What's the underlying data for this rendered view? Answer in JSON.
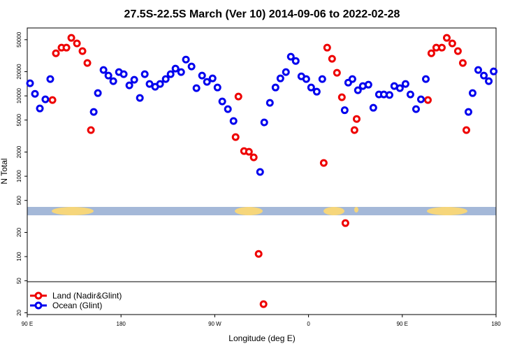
{
  "chart_data": {
    "type": "scatter",
    "title": "27.5S-22.5S March (Ver 10)   2014-09-06 to 2022-02-28",
    "x_label": "Longitude (deg E)",
    "y_label": "N Total",
    "log_y": true,
    "grid": false,
    "legend": "bottom-left",
    "xlim": [
      90,
      540
    ],
    "ylim": [
      19,
      70000
    ],
    "xticks": [
      {
        "value": 90,
        "label": "90 E"
      },
      {
        "value": 180,
        "label": "180"
      },
      {
        "value": 270,
        "label": "90 W"
      },
      {
        "value": 360,
        "label": "0"
      },
      {
        "value": 450,
        "label": "90 E"
      },
      {
        "value": 540,
        "label": "180"
      }
    ],
    "yticks": [
      20,
      50,
      100,
      200,
      500,
      1000,
      2000,
      5000,
      10000,
      20000,
      50000
    ],
    "series": [
      {
        "name": "Land (Nadir&Glint)",
        "color": "#ee0000",
        "x": [
          114.2,
          117.5,
          122.9,
          127.6,
          132.3,
          137.7,
          143,
          147.7,
          151.1,
          292.7,
          290,
          298.1,
          302.8,
          307.4,
          312.1,
          316.8,
          374.6,
          377.9,
          382.6,
          387.3,
          392,
          395.4,
          404.1,
          406.2,
          474.6,
          477.9,
          482.6,
          488,
          492.7,
          498,
          503.4,
          508.1,
          511.5
        ],
        "values": [
          8870,
          33900,
          39810,
          39810,
          52700,
          44900,
          36040,
          25650,
          3750,
          9800,
          3070,
          2055,
          2015,
          1718,
          108,
          25.6,
          1463,
          39810,
          28900,
          19360,
          9610,
          261,
          3750,
          5160,
          8870,
          33900,
          39810,
          39810,
          52700,
          44900,
          36040,
          25650,
          3750
        ]
      },
      {
        "name": "Ocean (Glint)",
        "color": "#0000ee",
        "x": [
          92.7,
          97.4,
          102.1,
          107.4,
          112.1,
          157.8,
          153.8,
          163.2,
          167.9,
          172.6,
          178,
          182.6,
          188,
          192.7,
          198.1,
          202.8,
          207.4,
          212.8,
          217.5,
          222.9,
          227.6,
          232.3,
          237.7,
          242.3,
          247.7,
          252.4,
          257.8,
          262.5,
          267.9,
          272.6,
          277.2,
          282.6,
          288,
          313.5,
          317.5,
          322.9,
          328.3,
          333,
          338.3,
          343,
          347.7,
          353.1,
          357.8,
          362.5,
          367.9,
          373.2,
          394.7,
          398.1,
          402.1,
          407.4,
          412.1,
          417.5,
          422.2,
          427.6,
          432.3,
          437.7,
          442.3,
          447.7,
          453.1,
          457.8,
          463.2,
          467.9,
          472.6,
          513.5,
          517.5,
          522.9,
          528.3,
          533,
          537.7
        ],
        "values": [
          14350,
          10600,
          6970,
          9050,
          16180,
          10830,
          6310,
          20990,
          17870,
          15230,
          19770,
          18620,
          13500,
          15850,
          9420,
          18620,
          14060,
          12970,
          14060,
          16180,
          18620,
          21830,
          19770,
          28310,
          23190,
          12470,
          17870,
          14930,
          16490,
          12710,
          8520,
          6840,
          4870,
          1130,
          4670,
          8190,
          12710,
          16490,
          19770,
          30690,
          27200,
          17500,
          16180,
          12710,
          11270,
          16180,
          6630,
          14620,
          16180,
          11740,
          13240,
          13770,
          7110,
          10410,
          10410,
          10250,
          13240,
          12470,
          14060,
          10410,
          6840,
          9050,
          16180,
          6310,
          10830,
          20990,
          17870,
          15230,
          20150
        ]
      }
    ]
  }
}
